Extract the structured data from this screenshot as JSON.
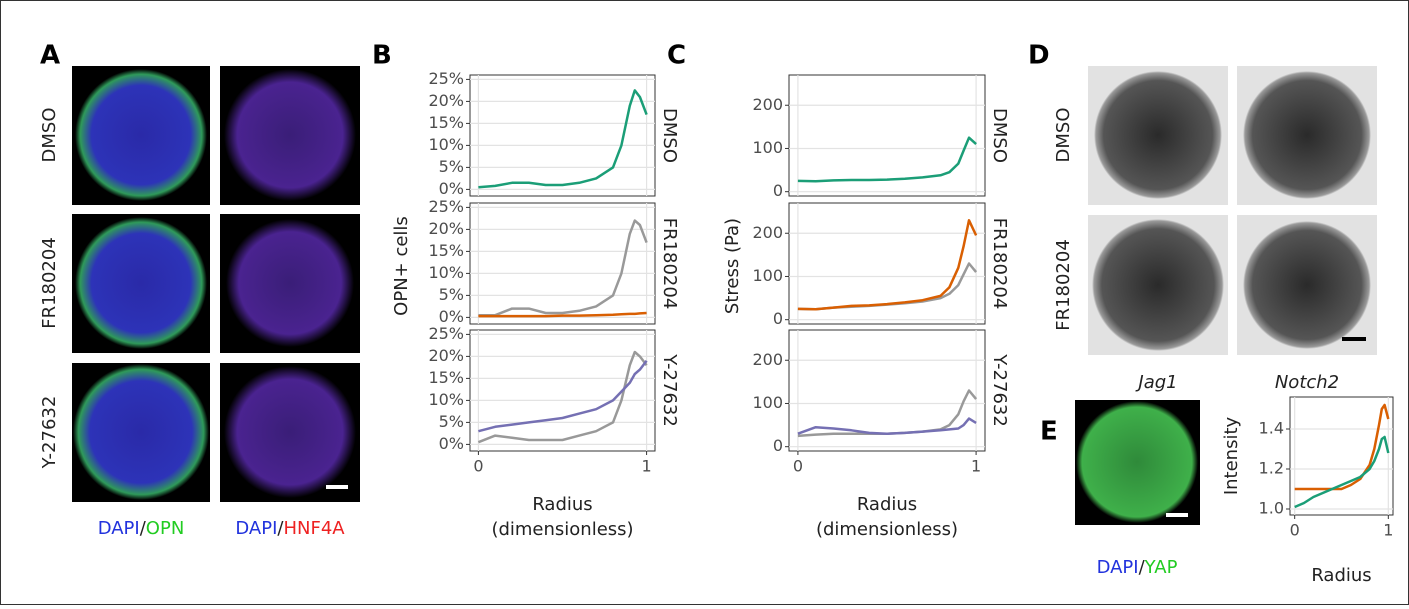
{
  "panel_labels": [
    "A",
    "B",
    "C",
    "D",
    "E"
  ],
  "panel_a": {
    "rows": [
      "DMSO",
      "FR180204",
      "Y-27632"
    ],
    "captions": [
      [
        "DAPI",
        "/",
        "OPN"
      ],
      [
        "DAPI",
        "/",
        "HNF4A"
      ]
    ]
  },
  "panel_d": {
    "rows": [
      "DMSO",
      "FR180204"
    ],
    "columns": [
      "Jag1",
      "Notch2"
    ]
  },
  "panel_e": {
    "caption": [
      "DAPI",
      "/",
      "YAP"
    ]
  },
  "chart_data": [
    {
      "type": "line",
      "ylabel": "OPN+ cells",
      "xlabel": [
        "Radius",
        "(dimensionless)"
      ],
      "grid": true,
      "xlim": [
        -0.05,
        1.05
      ],
      "xticks": [
        0,
        1
      ],
      "ylim": [
        -1.5,
        26
      ],
      "yticks": [
        {
          "value": 0,
          "label": "0%"
        },
        {
          "value": 5,
          "label": "5%"
        },
        {
          "value": 10,
          "label": "10%"
        },
        {
          "value": 15,
          "label": "15%"
        },
        {
          "value": 20,
          "label": "20%"
        },
        {
          "value": 25,
          "label": "25%"
        }
      ],
      "x": [
        0,
        0.1,
        0.2,
        0.3,
        0.4,
        0.5,
        0.6,
        0.7,
        0.8,
        0.85,
        0.9,
        0.93,
        0.96,
        1
      ],
      "facets": [
        {
          "label": "DMSO",
          "series": [
            {
              "color": "#1b9e77",
              "values": [
                0.5,
                0.8,
                1.5,
                1.5,
                1,
                1,
                1.5,
                2.5,
                5,
                10,
                19,
                22.5,
                21,
                17
              ]
            }
          ]
        },
        {
          "label": "FR180204",
          "series": [
            {
              "color": "#999999",
              "values": [
                0.5,
                0.5,
                2,
                2,
                1,
                1,
                1.5,
                2.5,
                5,
                10,
                19,
                22,
                21,
                17
              ]
            },
            {
              "color": "#d95f02",
              "values": [
                0.3,
                0.3,
                0.3,
                0.3,
                0.3,
                0.4,
                0.4,
                0.5,
                0.6,
                0.7,
                0.8,
                0.8,
                0.9,
                1
              ]
            }
          ]
        },
        {
          "label": "Y-27632",
          "series": [
            {
              "color": "#999999",
              "values": [
                0.5,
                2,
                1.5,
                1,
                1,
                1,
                2,
                3,
                5,
                10,
                18,
                21,
                20,
                18
              ]
            },
            {
              "color": "#7570b3",
              "values": [
                3,
                4,
                4.5,
                5,
                5.5,
                6,
                7,
                8,
                10,
                12,
                14,
                16,
                17,
                19
              ]
            }
          ]
        }
      ]
    },
    {
      "type": "line",
      "ylabel": "Stress (Pa)",
      "xlabel": [
        "Radius",
        "(dimensionless)"
      ],
      "grid": true,
      "xlim": [
        -0.05,
        1.05
      ],
      "xticks": [
        0,
        1
      ],
      "ylim": [
        -10,
        270
      ],
      "yticks": [
        0,
        100,
        200
      ],
      "x": [
        0,
        0.1,
        0.2,
        0.3,
        0.4,
        0.5,
        0.6,
        0.7,
        0.8,
        0.85,
        0.9,
        0.93,
        0.96,
        1
      ],
      "facets": [
        {
          "label": "DMSO",
          "series": [
            {
              "color": "#1b9e77",
              "values": [
                25,
                24,
                26,
                27,
                27,
                28,
                30,
                33,
                38,
                45,
                65,
                95,
                125,
                110
              ]
            }
          ]
        },
        {
          "label": "FR180204",
          "series": [
            {
              "color": "#999999",
              "values": [
                25,
                24,
                28,
                30,
                32,
                35,
                38,
                42,
                50,
                60,
                80,
                105,
                130,
                110
              ]
            },
            {
              "color": "#d95f02",
              "values": [
                25,
                24,
                28,
                32,
                33,
                36,
                40,
                45,
                55,
                75,
                120,
                170,
                230,
                195
              ]
            }
          ]
        },
        {
          "label": "Y-27632",
          "series": [
            {
              "color": "#999999",
              "values": [
                25,
                28,
                30,
                30,
                30,
                30,
                32,
                35,
                40,
                50,
                75,
                105,
                130,
                110
              ]
            },
            {
              "color": "#7570b3",
              "values": [
                30,
                45,
                42,
                38,
                32,
                30,
                32,
                35,
                38,
                40,
                42,
                50,
                65,
                55
              ]
            }
          ]
        }
      ]
    },
    {
      "type": "line",
      "ylabel": "Intensity",
      "xlabel": [
        "Radius"
      ],
      "grid": true,
      "xlim": [
        -0.05,
        1.05
      ],
      "xticks": [
        0,
        1
      ],
      "ylim": [
        0.97,
        1.56
      ],
      "yticks": [
        {
          "value": 1,
          "label": "1.0"
        },
        1.2,
        1.4
      ],
      "x": [
        0,
        0.1,
        0.2,
        0.3,
        0.4,
        0.5,
        0.6,
        0.7,
        0.8,
        0.85,
        0.9,
        0.93,
        0.96,
        1
      ],
      "series": [
        {
          "color": "#d95f02",
          "values": [
            1.1,
            1.1,
            1.1,
            1.1,
            1.1,
            1.1,
            1.12,
            1.15,
            1.22,
            1.3,
            1.42,
            1.5,
            1.52,
            1.45
          ]
        },
        {
          "color": "#1b9e77",
          "values": [
            1.01,
            1.03,
            1.06,
            1.08,
            1.1,
            1.12,
            1.14,
            1.16,
            1.2,
            1.24,
            1.3,
            1.35,
            1.36,
            1.28
          ]
        }
      ]
    }
  ]
}
